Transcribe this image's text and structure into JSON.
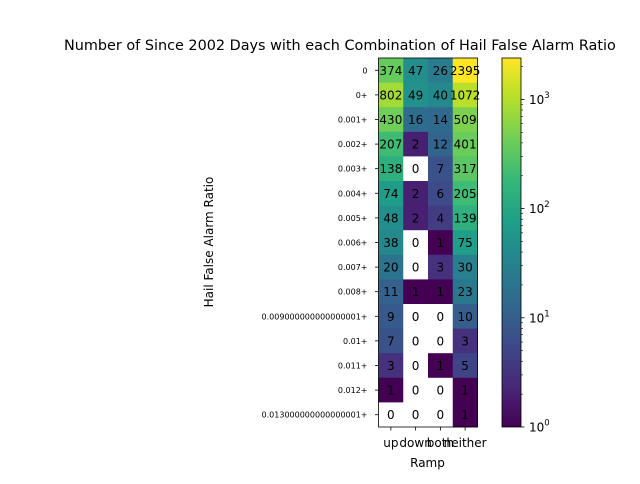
{
  "chart_data": {
    "type": "heatmap",
    "title": "Number of Since 2002 Days with each Combination of Hail False Alarm Ratio",
    "xlabel": "Ramp",
    "ylabel": "Hail False Alarm Ratio",
    "x_categories": [
      "up",
      "down",
      "both",
      "neither"
    ],
    "y_categories": [
      "0",
      "0+",
      "0.001+",
      "0.002+",
      "0.003+",
      "0.004+",
      "0.005+",
      "0.006+",
      "0.007+",
      "0.008+",
      "0.009000000000000001+",
      "0.01+",
      "0.011+",
      "0.012+",
      "0.013000000000000001+"
    ],
    "values": [
      [
        374,
        47,
        26,
        2395
      ],
      [
        802,
        49,
        40,
        1072
      ],
      [
        430,
        16,
        14,
        509
      ],
      [
        207,
        2,
        12,
        401
      ],
      [
        138,
        0,
        7,
        317
      ],
      [
        74,
        2,
        6,
        205
      ],
      [
        48,
        2,
        4,
        139
      ],
      [
        38,
        0,
        1,
        75
      ],
      [
        20,
        0,
        3,
        30
      ],
      [
        11,
        1,
        1,
        23
      ],
      [
        9,
        0,
        0,
        10
      ],
      [
        7,
        0,
        0,
        3
      ],
      [
        3,
        0,
        1,
        5
      ],
      [
        1,
        0,
        0,
        1
      ],
      [
        0,
        0,
        0,
        1
      ]
    ],
    "colorscale": "viridis",
    "color_scale_type": "log",
    "colorbar_range": [
      1,
      2395
    ],
    "colorbar_ticks": [
      {
        "value": 1,
        "base": "10",
        "exp": "0"
      },
      {
        "value": 10,
        "base": "10",
        "exp": "1"
      },
      {
        "value": 100,
        "base": "10",
        "exp": "2"
      },
      {
        "value": 1000,
        "base": "10",
        "exp": "3"
      }
    ],
    "zero_cell_color": "#ffffff"
  }
}
